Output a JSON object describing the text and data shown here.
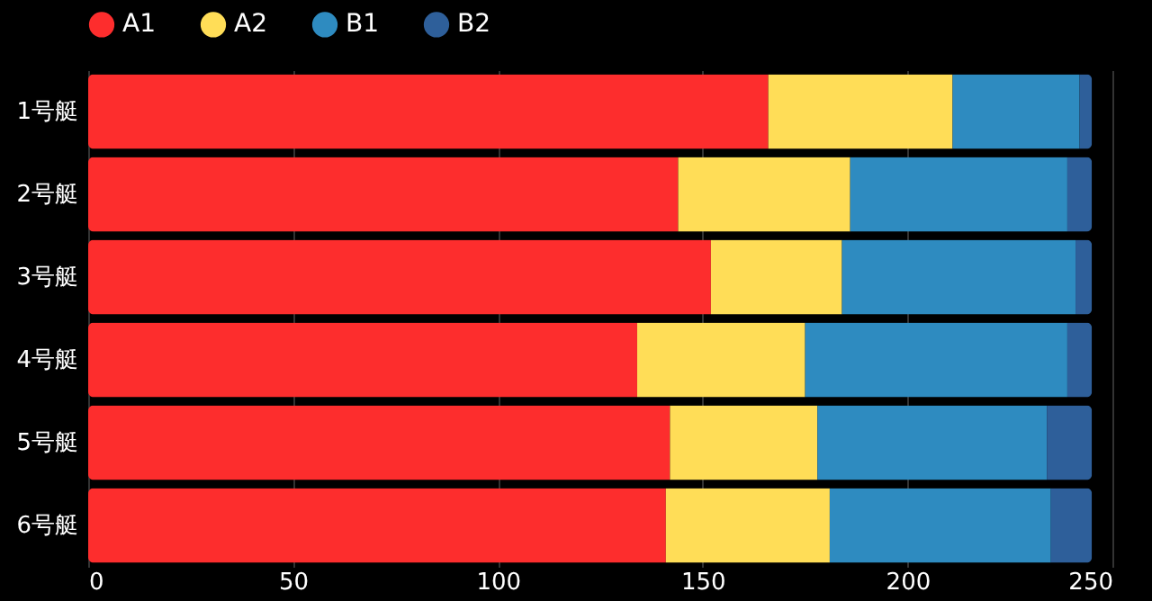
{
  "chart_data": {
    "type": "bar",
    "orientation": "horizontal",
    "stacked": true,
    "categories": [
      "1号艇",
      "2号艇",
      "3号艇",
      "4号艇",
      "5号艇",
      "6号艇"
    ],
    "series": [
      {
        "name": "A1",
        "color": "#fd2d2d",
        "values": [
          166,
          144,
          152,
          134,
          142,
          141
        ]
      },
      {
        "name": "A2",
        "color": "#ffdd57",
        "values": [
          45,
          42,
          32,
          41,
          36,
          40
        ]
      },
      {
        "name": "B1",
        "color": "#2e8bc0",
        "values": [
          31,
          53,
          57,
          64,
          56,
          54
        ]
      },
      {
        "name": "B2",
        "color": "#2e5f9a",
        "values": [
          3,
          6,
          4,
          6,
          11,
          10
        ]
      }
    ],
    "xlim": [
      0,
      250
    ],
    "xticks": [
      0,
      50,
      100,
      150,
      200,
      250
    ],
    "grid": "x",
    "legend": "top"
  }
}
